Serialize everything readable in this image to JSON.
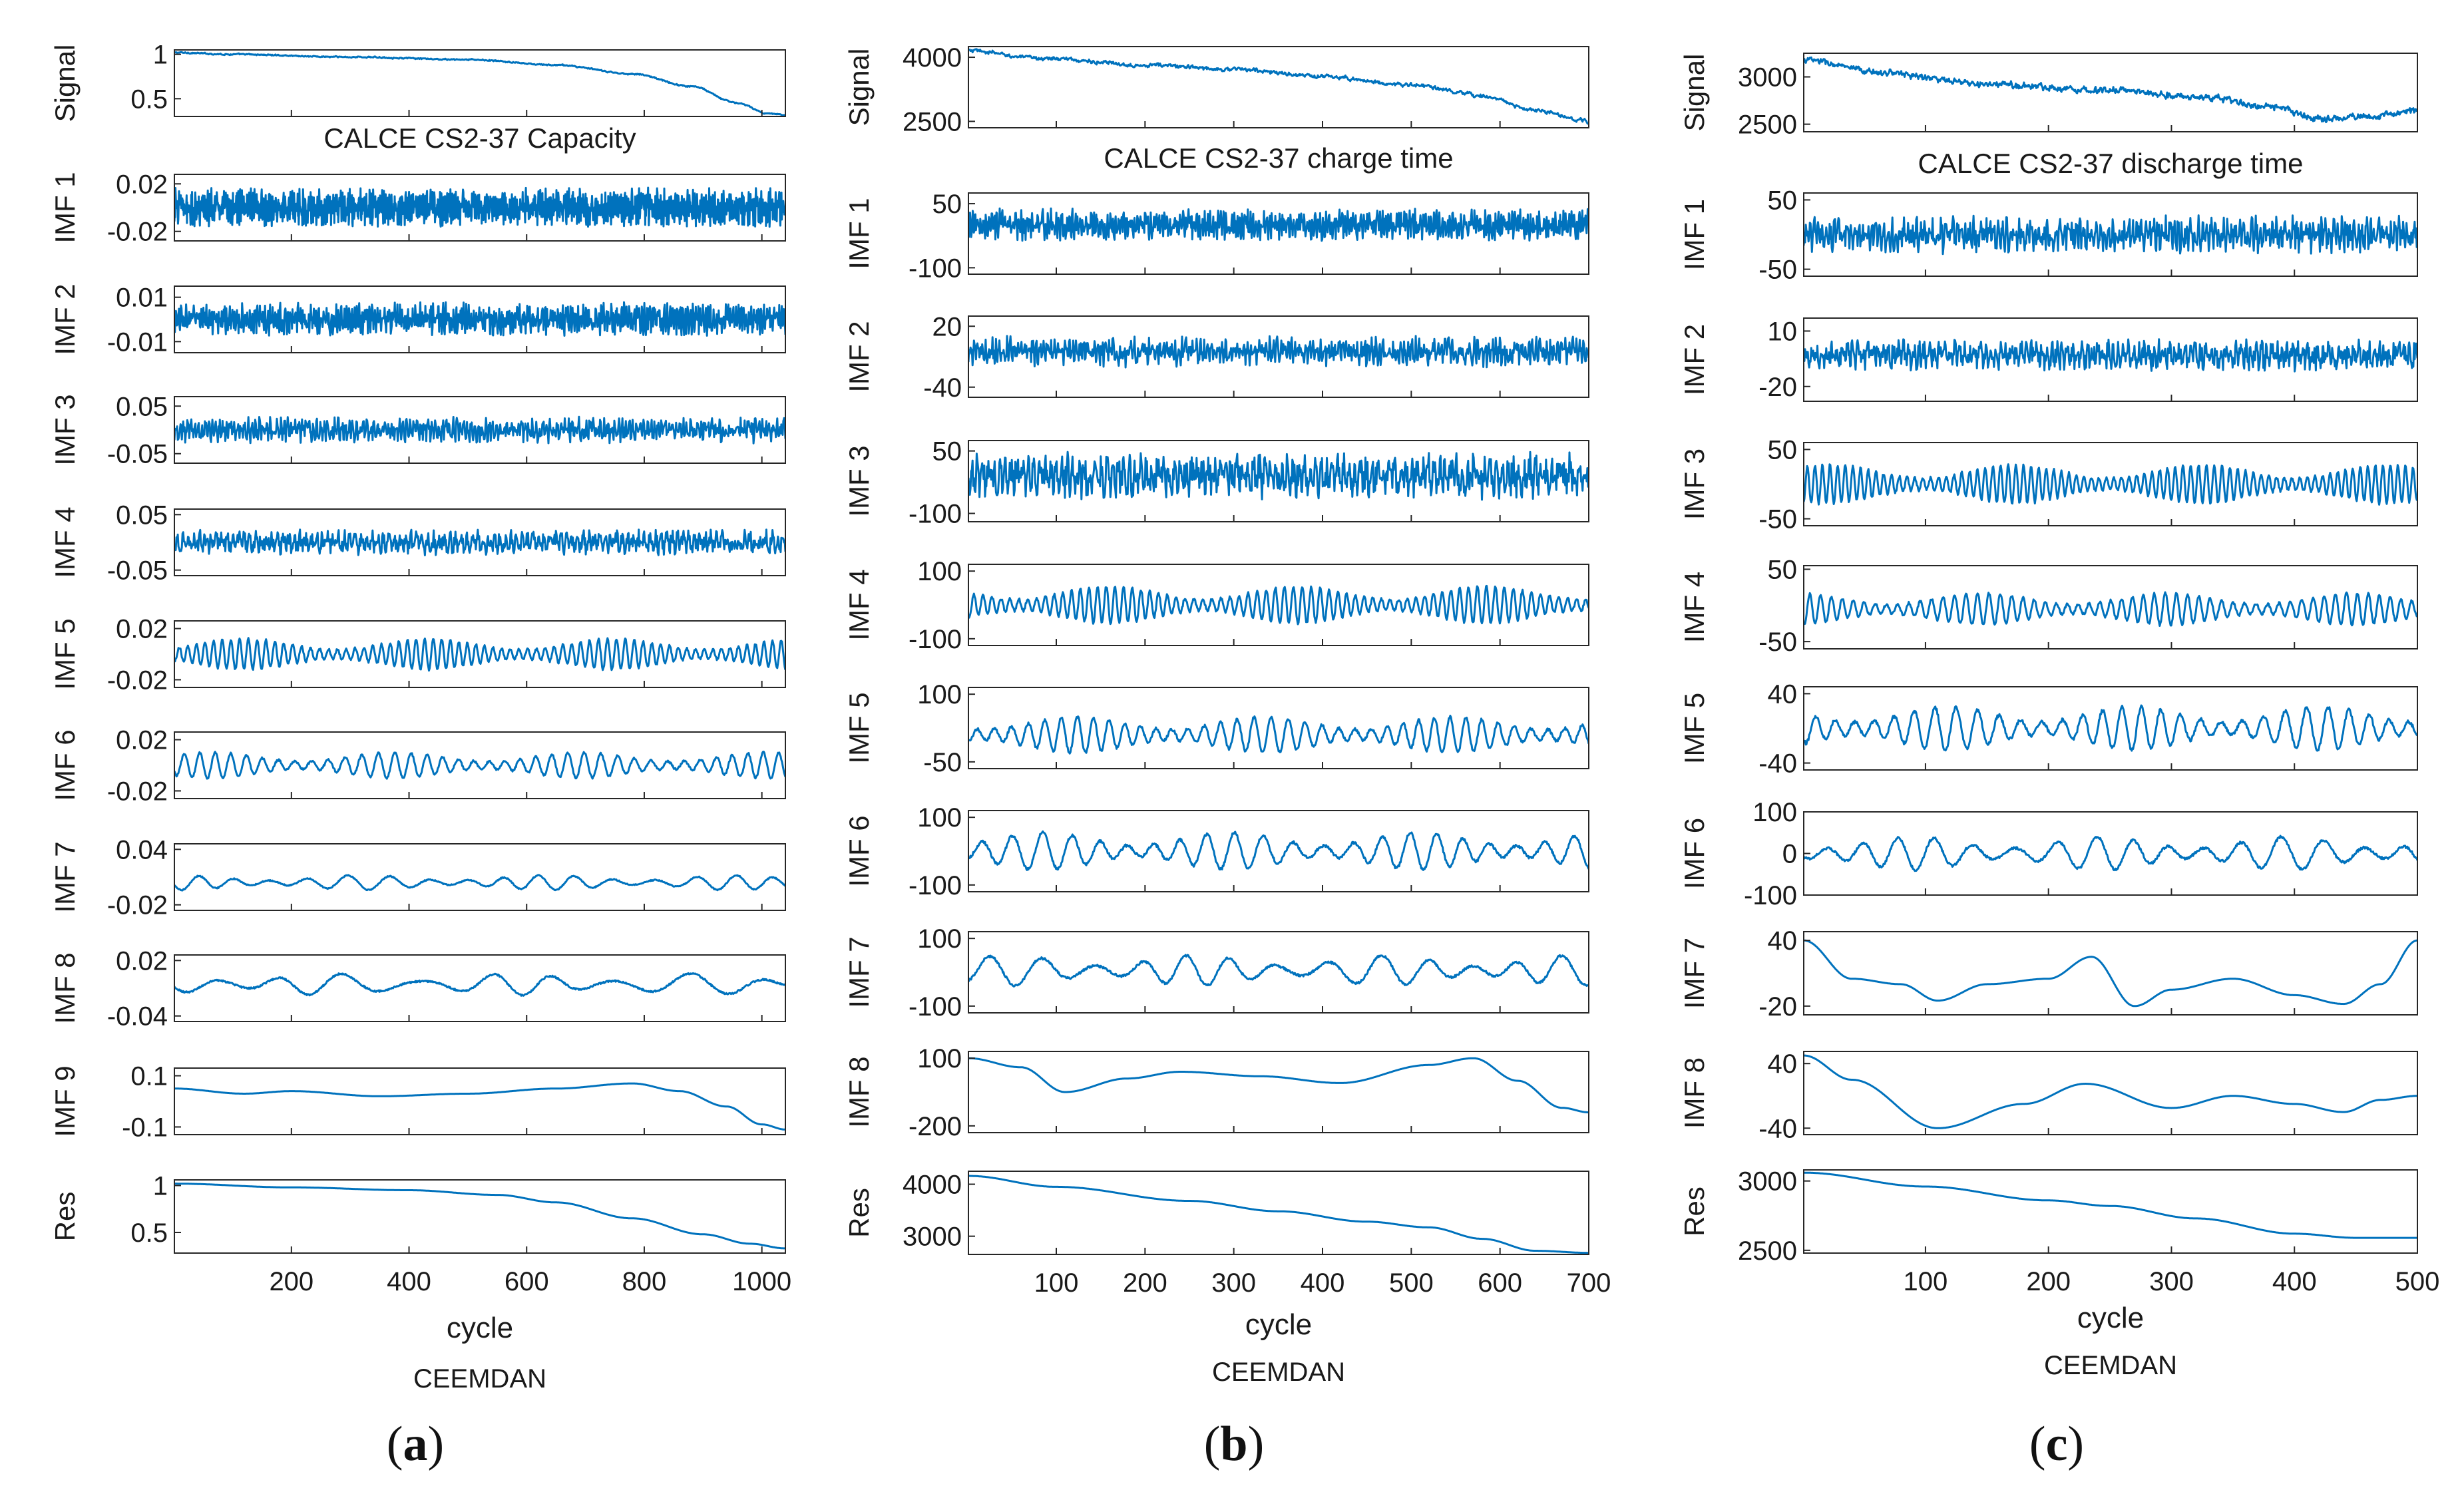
{
  "figure": {
    "line_color": "#0072BD",
    "axis_color": "#262626"
  },
  "chart_data": [
    {
      "type": "line",
      "panel_label": "a",
      "title": "CALCE CS2-37 Capacity",
      "xlabel": "cycle",
      "method": "CEEMDAN",
      "xlim": [
        1,
        1040
      ],
      "xticks": [
        200,
        400,
        600,
        800,
        1000
      ],
      "series": [
        {
          "name": "Signal",
          "ylabel": "Signal",
          "ylim": [
            0.3,
            1.05
          ],
          "yticks": [
            1,
            0.5
          ],
          "ytick_labels": [
            "1",
            "0.5"
          ],
          "kind": "trend",
          "points": [
            [
              1,
              1.02
            ],
            [
              100,
              1.0
            ],
            [
              300,
              0.97
            ],
            [
              500,
              0.94
            ],
            [
              650,
              0.88
            ],
            [
              780,
              0.78
            ],
            [
              880,
              0.64
            ],
            [
              960,
              0.45
            ],
            [
              1010,
              0.33
            ],
            [
              1040,
              0.32
            ]
          ],
          "noise": 0.01
        },
        {
          "name": "IMF 1",
          "ylabel": "IMF 1",
          "ylim": [
            -0.028,
            0.028
          ],
          "yticks": [
            0.02,
            -0.02
          ],
          "ytick_labels": [
            "0.02",
            "-0.02"
          ],
          "kind": "osc",
          "cycles": 340,
          "amplitude": 0.013
        },
        {
          "name": "IMF 2",
          "ylabel": "IMF 2",
          "ylim": [
            -0.015,
            0.015
          ],
          "yticks": [
            0.01,
            -0.01
          ],
          "ytick_labels": [
            "0.01",
            "-0.01"
          ],
          "kind": "osc",
          "cycles": 240,
          "amplitude": 0.006
        },
        {
          "name": "IMF 3",
          "ylabel": "IMF 3",
          "ylim": [
            -0.07,
            0.07
          ],
          "yticks": [
            0.05,
            -0.05
          ],
          "ytick_labels": [
            "0.05",
            "-0.05"
          ],
          "kind": "osc",
          "cycles": 170,
          "amplitude": 0.022
        },
        {
          "name": "IMF 4",
          "ylabel": "IMF 4",
          "ylim": [
            -0.06,
            0.06
          ],
          "yticks": [
            0.05,
            -0.05
          ],
          "ytick_labels": [
            "0.05",
            "-0.05"
          ],
          "kind": "osc",
          "cycles": 110,
          "amplitude": 0.018
        },
        {
          "name": "IMF 5",
          "ylabel": "IMF 5",
          "ylim": [
            -0.026,
            0.026
          ],
          "yticks": [
            0.02,
            -0.02
          ],
          "ytick_labels": [
            "0.02",
            "-0.02"
          ],
          "kind": "osc",
          "cycles": 70,
          "amplitude": 0.012
        },
        {
          "name": "IMF 6",
          "ylabel": "IMF 6",
          "ylim": [
            -0.026,
            0.026
          ],
          "yticks": [
            0.02,
            -0.02
          ],
          "ytick_labels": [
            "0.02",
            "-0.02"
          ],
          "kind": "osc",
          "cycles": 38,
          "amplitude": 0.01
        },
        {
          "name": "IMF 7",
          "ylabel": "IMF 7",
          "ylim": [
            -0.026,
            0.046
          ],
          "yticks": [
            0.04,
            -0.02
          ],
          "ytick_labels": [
            "0.04",
            "-0.02"
          ],
          "kind": "osc",
          "cycles": 16,
          "amplitude": 0.008,
          "offset": 0.004
        },
        {
          "name": "IMF 8",
          "ylabel": "IMF 8",
          "ylim": [
            -0.046,
            0.026
          ],
          "yticks": [
            0.02,
            -0.04
          ],
          "ytick_labels": [
            "0.02",
            "-0.04"
          ],
          "kind": "osc",
          "cycles": 9,
          "amplitude": 0.012,
          "offset": -0.006
        },
        {
          "name": "IMF 9",
          "ylabel": "IMF 9",
          "ylim": [
            -0.13,
            0.13
          ],
          "yticks": [
            0.1,
            -0.1
          ],
          "ytick_labels": [
            "0.1",
            "-0.1"
          ],
          "kind": "trend",
          "points": [
            [
              1,
              0.05
            ],
            [
              120,
              0.03
            ],
            [
              200,
              0.04
            ],
            [
              350,
              0.02
            ],
            [
              500,
              0.03
            ],
            [
              650,
              0.05
            ],
            [
              780,
              0.07
            ],
            [
              860,
              0.04
            ],
            [
              940,
              -0.02
            ],
            [
              1000,
              -0.09
            ],
            [
              1040,
              -0.11
            ]
          ]
        },
        {
          "name": "Res",
          "ylabel": "Res",
          "ylim": [
            0.28,
            1.06
          ],
          "yticks": [
            1,
            0.5
          ],
          "ytick_labels": [
            "1",
            "0.5"
          ],
          "kind": "trend",
          "points": [
            [
              1,
              1.02
            ],
            [
              200,
              0.98
            ],
            [
              400,
              0.95
            ],
            [
              550,
              0.9
            ],
            [
              650,
              0.82
            ],
            [
              780,
              0.65
            ],
            [
              900,
              0.48
            ],
            [
              980,
              0.38
            ],
            [
              1040,
              0.33
            ]
          ]
        }
      ]
    },
    {
      "type": "line",
      "panel_label": "b",
      "title": "CALCE CS2-37 charge time",
      "xlabel": "cycle",
      "method": "CEEMDAN",
      "xlim": [
        1,
        700
      ],
      "xticks": [
        100,
        200,
        300,
        400,
        500,
        600,
        700
      ],
      "series": [
        {
          "name": "Signal",
          "ylabel": "Signal",
          "ylim": [
            2350,
            4250
          ],
          "yticks": [
            4000,
            2500
          ],
          "ytick_labels": [
            "4000",
            "2500"
          ],
          "kind": "trend",
          "points": [
            [
              1,
              4150
            ],
            [
              80,
              3980
            ],
            [
              200,
              3820
            ],
            [
              300,
              3720
            ],
            [
              400,
              3550
            ],
            [
              500,
              3350
            ],
            [
              580,
              3100
            ],
            [
              640,
              2750
            ],
            [
              700,
              2500
            ]
          ],
          "noise": 60
        },
        {
          "name": "IMF 1",
          "ylabel": "IMF 1",
          "ylim": [
            -115,
            75
          ],
          "yticks": [
            50,
            -100
          ],
          "ytick_labels": [
            "50",
            "-100"
          ],
          "kind": "osc",
          "cycles": 230,
          "amplitude": 30
        },
        {
          "name": "IMF 2",
          "ylabel": "IMF 2",
          "ylim": [
            -50,
            30
          ],
          "yticks": [
            20,
            -40
          ],
          "ytick_labels": [
            "20",
            "-40"
          ],
          "kind": "osc",
          "cycles": 170,
          "amplitude": 12,
          "offset": -5
        },
        {
          "name": "IMF 3",
          "ylabel": "IMF 3",
          "ylim": [
            -120,
            75
          ],
          "yticks": [
            50,
            -100
          ],
          "ytick_labels": [
            "50",
            "-100"
          ],
          "kind": "osc",
          "cycles": 110,
          "amplitude": 45,
          "offset": -10
        },
        {
          "name": "IMF 4",
          "ylabel": "IMF 4",
          "ylim": [
            -120,
            120
          ],
          "yticks": [
            100,
            -100
          ],
          "ytick_labels": [
            "100",
            "-100"
          ],
          "kind": "osc",
          "cycles": 70,
          "amplitude": 55
        },
        {
          "name": "IMF 5",
          "ylabel": "IMF 5",
          "ylim": [
            -65,
            115
          ],
          "yticks": [
            100,
            -50
          ],
          "ytick_labels": [
            "100",
            "-50"
          ],
          "kind": "osc",
          "cycles": 38,
          "amplitude": 40,
          "offset": 10
        },
        {
          "name": "IMF 6",
          "ylabel": "IMF 6",
          "ylim": [
            -120,
            120
          ],
          "yticks": [
            100,
            -100
          ],
          "ytick_labels": [
            "100",
            "-100"
          ],
          "kind": "osc",
          "cycles": 22,
          "amplitude": 55
        },
        {
          "name": "IMF 7",
          "ylabel": "IMF 7",
          "ylim": [
            -120,
            120
          ],
          "yticks": [
            100,
            -100
          ],
          "ytick_labels": [
            "100",
            "-100"
          ],
          "kind": "osc",
          "cycles": 13,
          "amplitude": 45,
          "offset": 5
        },
        {
          "name": "IMF 8",
          "ylabel": "IMF 8",
          "ylim": [
            -230,
            130
          ],
          "yticks": [
            100,
            -200
          ],
          "ytick_labels": [
            "100",
            "-200"
          ],
          "kind": "trend",
          "points": [
            [
              1,
              100
            ],
            [
              60,
              60
            ],
            [
              110,
              -50
            ],
            [
              180,
              10
            ],
            [
              240,
              40
            ],
            [
              330,
              20
            ],
            [
              420,
              -10
            ],
            [
              520,
              70
            ],
            [
              570,
              100
            ],
            [
              620,
              0
            ],
            [
              670,
              -120
            ],
            [
              700,
              -140
            ]
          ]
        },
        {
          "name": "Res",
          "ylabel": "Res",
          "ylim": [
            2650,
            4250
          ],
          "yticks": [
            4000,
            3000
          ],
          "ytick_labels": [
            "4000",
            "3000"
          ],
          "kind": "trend",
          "points": [
            [
              1,
              4160
            ],
            [
              100,
              3950
            ],
            [
              250,
              3680
            ],
            [
              350,
              3480
            ],
            [
              450,
              3280
            ],
            [
              520,
              3170
            ],
            [
              580,
              2950
            ],
            [
              640,
              2720
            ],
            [
              700,
              2680
            ]
          ]
        }
      ]
    },
    {
      "type": "line",
      "panel_label": "c",
      "title": "CALCE CS2-37 discharge time",
      "xlabel": "cycle",
      "method": "CEEMDAN",
      "xlim": [
        1,
        500
      ],
      "xticks": [
        100,
        200,
        300,
        400,
        500
      ],
      "series": [
        {
          "name": "Signal",
          "ylabel": "Signal",
          "ylim": [
            2420,
            3250
          ],
          "yticks": [
            3000,
            2500
          ],
          "ytick_labels": [
            "3000",
            "2500"
          ],
          "kind": "trend",
          "points": [
            [
              1,
              3180
            ],
            [
              60,
              3050
            ],
            [
              150,
              2920
            ],
            [
              250,
              2860
            ],
            [
              330,
              2780
            ],
            [
              380,
              2680
            ],
            [
              420,
              2560
            ],
            [
              460,
              2580
            ],
            [
              500,
              2640
            ]
          ],
          "noise": 45
        },
        {
          "name": "IMF 1",
          "ylabel": "IMF 1",
          "ylim": [
            -60,
            60
          ],
          "yticks": [
            50,
            -50
          ],
          "ytick_labels": [
            "50",
            "-50"
          ],
          "kind": "osc",
          "cycles": 150,
          "amplitude": 22
        },
        {
          "name": "IMF 2",
          "ylabel": "IMF 2",
          "ylim": [
            -28,
            17
          ],
          "yticks": [
            10,
            -20
          ],
          "ytick_labels": [
            "10",
            "-20"
          ],
          "kind": "osc",
          "cycles": 120,
          "amplitude": 7,
          "offset": -3
        },
        {
          "name": "IMF 3",
          "ylabel": "IMF 3",
          "ylim": [
            -60,
            60
          ],
          "yticks": [
            50,
            -50
          ],
          "ytick_labels": [
            "50",
            "-50"
          ],
          "kind": "osc",
          "cycles": 80,
          "amplitude": 28
        },
        {
          "name": "IMF 4",
          "ylabel": "IMF 4",
          "ylim": [
            -60,
            55
          ],
          "yticks": [
            50,
            -50
          ],
          "ytick_labels": [
            "50",
            "-50"
          ],
          "kind": "osc",
          "cycles": 55,
          "amplitude": 22,
          "offset": -5
        },
        {
          "name": "IMF 5",
          "ylabel": "IMF 5",
          "ylim": [
            -48,
            48
          ],
          "yticks": [
            40,
            -40
          ],
          "ytick_labels": [
            "40",
            "-40"
          ],
          "kind": "osc",
          "cycles": 30,
          "amplitude": 25
        },
        {
          "name": "IMF 6",
          "ylabel": "IMF 6",
          "ylim": [
            -100,
            100
          ],
          "yticks": [
            100,
            0,
            -100
          ],
          "ytick_labels": [
            "100",
            "0",
            "-100"
          ],
          "kind": "osc",
          "cycles": 16,
          "amplitude": 40
        },
        {
          "name": "IMF 7",
          "ylabel": "IMF 7",
          "ylim": [
            -28,
            48
          ],
          "yticks": [
            40,
            -20
          ],
          "ytick_labels": [
            "40",
            "-20"
          ],
          "kind": "trend",
          "points": [
            [
              1,
              40
            ],
            [
              40,
              5
            ],
            [
              80,
              0
            ],
            [
              110,
              -15
            ],
            [
              150,
              0
            ],
            [
              200,
              5
            ],
            [
              235,
              25
            ],
            [
              270,
              -20
            ],
            [
              300,
              -5
            ],
            [
              350,
              5
            ],
            [
              400,
              -10
            ],
            [
              440,
              -18
            ],
            [
              470,
              0
            ],
            [
              500,
              40
            ]
          ]
        },
        {
          "name": "IMF 8",
          "ylabel": "IMF 8",
          "ylim": [
            -48,
            55
          ],
          "yticks": [
            40,
            -40
          ],
          "ytick_labels": [
            "40",
            "-40"
          ],
          "kind": "trend",
          "points": [
            [
              1,
              50
            ],
            [
              40,
              20
            ],
            [
              110,
              -40
            ],
            [
              180,
              -10
            ],
            [
              230,
              15
            ],
            [
              300,
              -15
            ],
            [
              350,
              0
            ],
            [
              400,
              -10
            ],
            [
              440,
              -20
            ],
            [
              470,
              -5
            ],
            [
              500,
              0
            ]
          ]
        },
        {
          "name": "Res",
          "ylabel": "Res",
          "ylim": [
            2480,
            3080
          ],
          "yticks": [
            3000,
            2500
          ],
          "ytick_labels": [
            "3000",
            "2500"
          ],
          "kind": "trend",
          "points": [
            [
              1,
              3060
            ],
            [
              100,
              2960
            ],
            [
              200,
              2860
            ],
            [
              250,
              2820
            ],
            [
              320,
              2730
            ],
            [
              400,
              2620
            ],
            [
              450,
              2590
            ],
            [
              500,
              2590
            ]
          ]
        }
      ]
    }
  ]
}
